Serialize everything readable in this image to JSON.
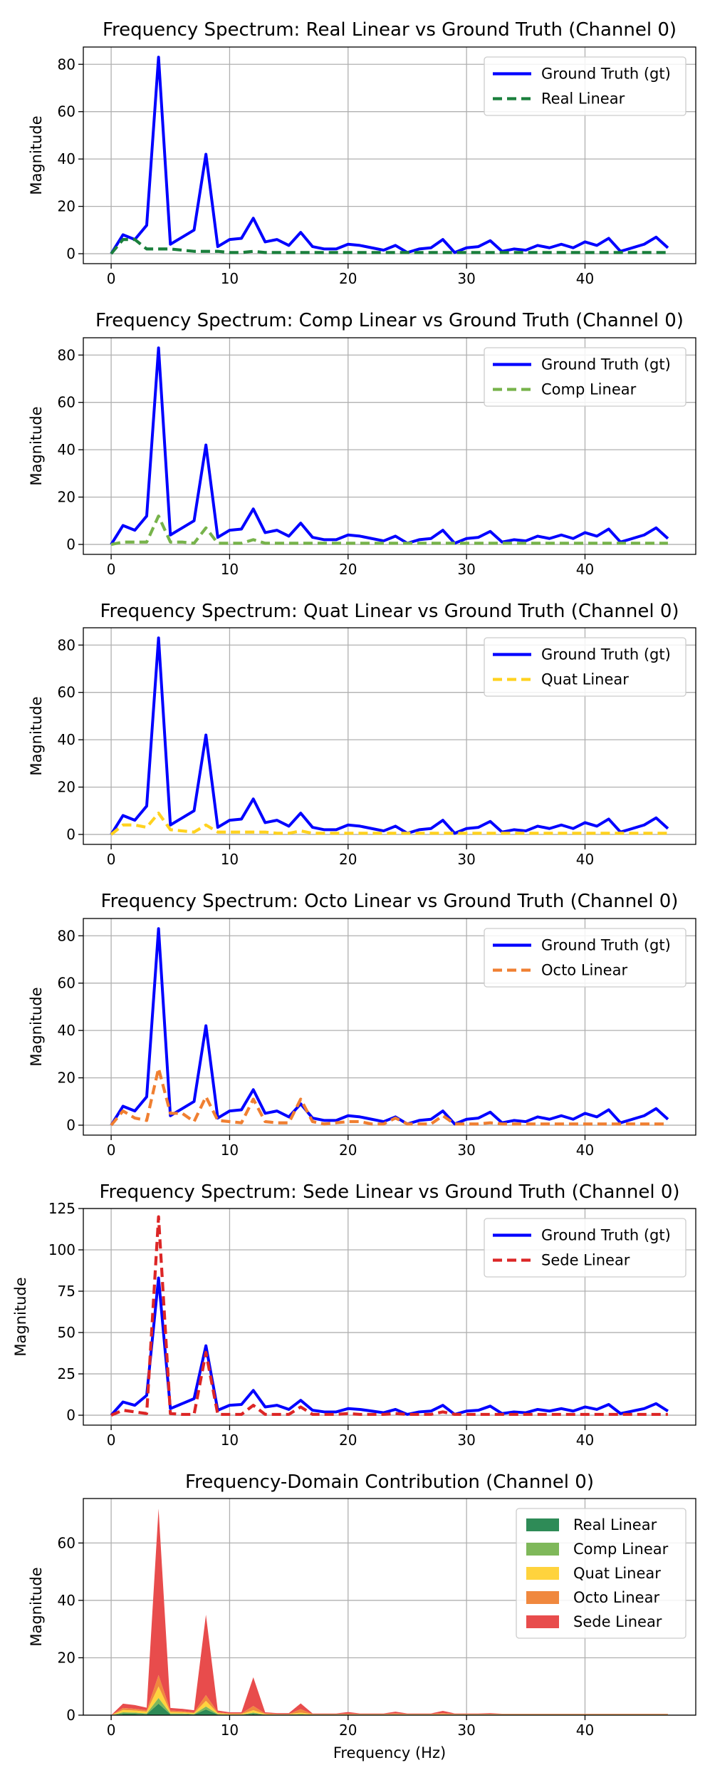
{
  "chart_data": [
    {
      "type": "line",
      "title": "Frequency Spectrum: Real Linear vs Ground Truth (Channel 0)",
      "xlabel": "",
      "ylabel": "Magnitude",
      "xlim": [
        -2.35,
        49.35
      ],
      "ylim": [
        -4.2,
        87.3
      ],
      "xticks": [
        "0",
        "10",
        "20",
        "30",
        "40"
      ],
      "yticks": [
        "0",
        "20",
        "40",
        "60",
        "80"
      ],
      "grid": true,
      "legend": "top-right",
      "series": [
        {
          "name": "Ground Truth (gt)",
          "color": "#0000ff",
          "dash": "solid",
          "values": [
            0,
            8,
            6,
            12,
            83,
            4,
            7,
            10,
            42,
            3,
            6,
            6.5,
            15,
            5,
            6,
            3.5,
            9,
            3,
            2,
            2,
            4,
            3.5,
            2.5,
            1.5,
            3.5,
            0.5,
            2,
            2.5,
            6,
            0.5,
            2.5,
            3,
            5.5,
            1,
            2,
            1.5,
            3.5,
            2.5,
            4,
            2.5,
            5,
            3.5,
            6.5,
            1,
            2.5,
            4,
            7,
            2.5
          ]
        },
        {
          "name": "Real Linear",
          "color": "#1a7f3c",
          "dash": "dashed",
          "values": [
            0,
            6,
            6,
            2,
            2,
            2,
            1.5,
            1,
            1,
            1,
            0.5,
            0.5,
            1,
            0.5,
            0.5,
            0.5,
            0.5,
            0.5,
            0.5,
            0.5,
            0.5,
            0.5,
            0.5,
            0.5,
            0.5,
            0.5,
            0.5,
            0.5,
            0.5,
            0.5,
            0.5,
            0.5,
            0.5,
            0.5,
            0.5,
            0.5,
            0.5,
            0.5,
            0.5,
            0.5,
            0.5,
            0.5,
            0.5,
            0.5,
            0.5,
            0.5,
            0.5,
            0.5
          ]
        }
      ]
    },
    {
      "type": "line",
      "title": "Frequency Spectrum: Comp Linear vs Ground Truth (Channel 0)",
      "xlabel": "",
      "ylabel": "Magnitude",
      "xlim": [
        -2.35,
        49.35
      ],
      "ylim": [
        -4.2,
        87.3
      ],
      "xticks": [
        "0",
        "10",
        "20",
        "30",
        "40"
      ],
      "yticks": [
        "0",
        "20",
        "40",
        "60",
        "80"
      ],
      "grid": true,
      "legend": "top-right",
      "series": [
        {
          "name": "Ground Truth (gt)",
          "color": "#0000ff",
          "dash": "solid",
          "values": [
            0,
            8,
            6,
            12,
            83,
            4,
            7,
            10,
            42,
            3,
            6,
            6.5,
            15,
            5,
            6,
            3.5,
            9,
            3,
            2,
            2,
            4,
            3.5,
            2.5,
            1.5,
            3.5,
            0.5,
            2,
            2.5,
            6,
            0.5,
            2.5,
            3,
            5.5,
            1,
            2,
            1.5,
            3.5,
            2.5,
            4,
            2.5,
            5,
            3.5,
            6.5,
            1,
            2.5,
            4,
            7,
            2.5
          ]
        },
        {
          "name": "Comp Linear",
          "color": "#77b34b",
          "dash": "dashed",
          "values": [
            0,
            1,
            1,
            1,
            12,
            1,
            1,
            0.5,
            7,
            0.5,
            0.5,
            0.5,
            2,
            0.5,
            0.5,
            0.5,
            0.5,
            0.5,
            0.5,
            0.5,
            0.5,
            0.5,
            0.5,
            0.5,
            0.5,
            0.5,
            0.5,
            0.5,
            0.5,
            0.5,
            0.5,
            0.5,
            0.5,
            0.5,
            0.5,
            0.5,
            0.5,
            0.5,
            0.5,
            0.5,
            0.5,
            0.5,
            0.5,
            0.5,
            0.5,
            0.5,
            0.5,
            0.5
          ]
        }
      ]
    },
    {
      "type": "line",
      "title": "Frequency Spectrum: Quat Linear vs Ground Truth (Channel 0)",
      "xlabel": "",
      "ylabel": "Magnitude",
      "xlim": [
        -2.35,
        49.35
      ],
      "ylim": [
        -4.2,
        87.3
      ],
      "xticks": [
        "0",
        "10",
        "20",
        "30",
        "40"
      ],
      "yticks": [
        "0",
        "20",
        "40",
        "60",
        "80"
      ],
      "grid": true,
      "legend": "top-right",
      "series": [
        {
          "name": "Ground Truth (gt)",
          "color": "#0000ff",
          "dash": "solid",
          "values": [
            0,
            8,
            6,
            12,
            83,
            4,
            7,
            10,
            42,
            3,
            6,
            6.5,
            15,
            5,
            6,
            3.5,
            9,
            3,
            2,
            2,
            4,
            3.5,
            2.5,
            1.5,
            3.5,
            0.5,
            2,
            2.5,
            6,
            0.5,
            2.5,
            3,
            5.5,
            1,
            2,
            1.5,
            3.5,
            2.5,
            4,
            2.5,
            5,
            3.5,
            6.5,
            1,
            2.5,
            4,
            7,
            2.5
          ]
        },
        {
          "name": "Quat Linear",
          "color": "#ffd21f",
          "dash": "dashed",
          "values": [
            0,
            4,
            4,
            3,
            9,
            2,
            1.5,
            1,
            4,
            1,
            1,
            1,
            1,
            1,
            0.5,
            0.5,
            1.5,
            0.5,
            0.5,
            0.5,
            0.5,
            0.5,
            0.5,
            0.5,
            0.5,
            0.5,
            0.5,
            0.5,
            0.5,
            0.5,
            0.5,
            0.5,
            0.5,
            0.5,
            0.5,
            0.5,
            0.5,
            0.5,
            0.5,
            0.5,
            0.5,
            0.5,
            0.5,
            0.5,
            0.5,
            0.5,
            0.5,
            0.5
          ]
        }
      ]
    },
    {
      "type": "line",
      "title": "Frequency Spectrum: Octo Linear vs Ground Truth (Channel 0)",
      "xlabel": "",
      "ylabel": "Magnitude",
      "xlim": [
        -2.35,
        49.35
      ],
      "ylim": [
        -4.2,
        87.3
      ],
      "xticks": [
        "0",
        "10",
        "20",
        "30",
        "40"
      ],
      "yticks": [
        "0",
        "20",
        "40",
        "60",
        "80"
      ],
      "grid": true,
      "legend": "top-right",
      "series": [
        {
          "name": "Ground Truth (gt)",
          "color": "#0000ff",
          "dash": "solid",
          "values": [
            0,
            8,
            6,
            12,
            83,
            4,
            7,
            10,
            42,
            3,
            6,
            6.5,
            15,
            5,
            6,
            3.5,
            9,
            3,
            2,
            2,
            4,
            3.5,
            2.5,
            1.5,
            3.5,
            0.5,
            2,
            2.5,
            6,
            0.5,
            2.5,
            3,
            5.5,
            1,
            2,
            1.5,
            3.5,
            2.5,
            4,
            2.5,
            5,
            3.5,
            6.5,
            1,
            2.5,
            4,
            7,
            2.5
          ]
        },
        {
          "name": "Octo Linear",
          "color": "#f07f31",
          "dash": "dashed",
          "values": [
            0,
            6,
            3,
            2,
            24,
            5,
            5,
            1.5,
            12,
            2,
            1.5,
            1,
            11,
            1.5,
            1,
            1,
            11,
            1.5,
            0.5,
            1,
            1.5,
            1.5,
            0.5,
            0.5,
            3,
            0.5,
            0.5,
            0.5,
            4,
            0.5,
            0.5,
            0.5,
            1,
            0.5,
            0.5,
            0.5,
            0.5,
            0.5,
            0.5,
            0.5,
            0.5,
            0.5,
            0.5,
            0.5,
            0.5,
            0.5,
            0.5,
            0.5
          ]
        }
      ]
    },
    {
      "type": "line",
      "title": "Frequency Spectrum: Sede Linear vs Ground Truth (Channel 0)",
      "xlabel": "",
      "ylabel": "Magnitude",
      "xlim": [
        -2.35,
        49.35
      ],
      "ylim": [
        -6,
        125
      ],
      "xticks": [
        "0",
        "10",
        "20",
        "30",
        "40"
      ],
      "yticks": [
        "0",
        "25",
        "50",
        "75",
        "100",
        "125"
      ],
      "grid": true,
      "legend": "top-right",
      "series": [
        {
          "name": "Ground Truth (gt)",
          "color": "#0000ff",
          "dash": "solid",
          "values": [
            0,
            8,
            6,
            12,
            83,
            4,
            7,
            10,
            42,
            3,
            6,
            6.5,
            15,
            5,
            6,
            3.5,
            9,
            3,
            2,
            2,
            4,
            3.5,
            2.5,
            1.5,
            3.5,
            0.5,
            2,
            2.5,
            6,
            0.5,
            2.5,
            3,
            5.5,
            1,
            2,
            1.5,
            3.5,
            2.5,
            4,
            2.5,
            5,
            3.5,
            6.5,
            1,
            2.5,
            4,
            7,
            2.5
          ]
        },
        {
          "name": "Sede Linear",
          "color": "#dc2626",
          "dash": "dashed",
          "values": [
            0,
            3,
            2,
            1,
            120,
            1,
            0.5,
            0.5,
            38,
            0.5,
            0.5,
            0.5,
            6,
            0.5,
            0.5,
            0.5,
            5,
            0.5,
            0.5,
            0.5,
            1,
            0.5,
            0.5,
            0.5,
            1,
            0.5,
            0.5,
            0.5,
            2,
            0.5,
            0.5,
            0.5,
            0.5,
            0.5,
            0.5,
            0.5,
            0.5,
            0.5,
            0.5,
            0.5,
            0.5,
            0.5,
            0.5,
            0.5,
            0.5,
            0.5,
            0.5,
            0.5
          ]
        }
      ]
    },
    {
      "type": "area",
      "stacked": true,
      "title": "Frequency-Domain Contribution (Channel 0)",
      "xlabel": "Frequency (Hz)",
      "ylabel": "Magnitude",
      "xlim": [
        -2.35,
        49.35
      ],
      "ylim": [
        0,
        75.5
      ],
      "xticks": [
        "0",
        "10",
        "20",
        "30",
        "40"
      ],
      "yticks": [
        "0",
        "20",
        "40",
        "60"
      ],
      "grid": true,
      "legend": "top-right",
      "series": [
        {
          "name": "Real Linear",
          "color": "#2e8b57",
          "values": [
            0,
            0.5,
            0.5,
            0.3,
            4,
            0.3,
            0.3,
            0.2,
            2,
            0.2,
            0.1,
            0.1,
            0.5,
            0.1,
            0.1,
            0.1,
            0.2,
            0.1,
            0.1,
            0.1,
            0.1,
            0.1,
            0.1,
            0.1,
            0.1,
            0.1,
            0.1,
            0.1,
            0.1,
            0.1,
            0.1,
            0.1,
            0.1,
            0.1,
            0.1,
            0.1,
            0.1,
            0.1,
            0.1,
            0.1,
            0.1,
            0.1,
            0.1,
            0.1,
            0.1,
            0.1,
            0.1,
            0.1
          ]
        },
        {
          "name": "Comp Linear",
          "color": "#7fb85a",
          "values": [
            0,
            0.5,
            0.4,
            0.3,
            2,
            0.3,
            0.3,
            0.2,
            1,
            0.2,
            0.1,
            0.1,
            0.4,
            0.1,
            0.1,
            0.1,
            0.2,
            0.1,
            0.1,
            0.1,
            0.1,
            0.1,
            0.1,
            0.1,
            0.1,
            0.1,
            0.1,
            0.1,
            0.1,
            0.1,
            0.1,
            0.1,
            0.1,
            0.1,
            0.1,
            0.1,
            0.1,
            0.1,
            0.1,
            0.1,
            0.1,
            0.1,
            0.1,
            0.1,
            0.1,
            0.1,
            0.1,
            0.1
          ]
        },
        {
          "name": "Quat Linear",
          "color": "#ffd33d",
          "values": [
            0,
            0.8,
            0.7,
            0.6,
            4,
            0.5,
            0.4,
            0.3,
            2,
            0.3,
            0.2,
            0.2,
            0.8,
            0.2,
            0.1,
            0.1,
            0.5,
            0.1,
            0.1,
            0.1,
            0.1,
            0.1,
            0.1,
            0.1,
            0.1,
            0.1,
            0.1,
            0.1,
            0.1,
            0.1,
            0.1,
            0.1,
            0.1,
            0.1,
            0.1,
            0.1,
            0.1,
            0.1,
            0.1,
            0.1,
            0.1,
            0.1,
            0.1,
            0.1,
            0.1,
            0.1,
            0.1,
            0.1
          ]
        },
        {
          "name": "Octo Linear",
          "color": "#f0883e",
          "values": [
            0,
            0.7,
            0.6,
            0.5,
            4,
            0.5,
            0.4,
            0.3,
            2,
            0.3,
            0.2,
            0.2,
            1.5,
            0.2,
            0.1,
            0.1,
            1.2,
            0.1,
            0.1,
            0.1,
            0.2,
            0.1,
            0.1,
            0.1,
            0.3,
            0.1,
            0.1,
            0.1,
            0.4,
            0.1,
            0.1,
            0.1,
            0.1,
            0.1,
            0.1,
            0.1,
            0.1,
            0.1,
            0.1,
            0.1,
            0.1,
            0.1,
            0.1,
            0.1,
            0.1,
            0.1,
            0.1,
            0.1
          ]
        },
        {
          "name": "Sede Linear",
          "color": "#e84c4c",
          "values": [
            0,
            1.5,
            1.3,
            0.9,
            58,
            0.9,
            0.8,
            0.7,
            28,
            0.6,
            0.4,
            0.4,
            10,
            0.4,
            0.3,
            0.3,
            2,
            0.2,
            0.2,
            0.2,
            0.6,
            0.2,
            0.2,
            0.2,
            0.6,
            0.2,
            0.2,
            0.2,
            0.8,
            0.2,
            0.2,
            0.2,
            0.3,
            0.1,
            0.1,
            0.1,
            0.1,
            0.1,
            0.1,
            0.1,
            0.1,
            0.1,
            0.1,
            0.1,
            0.1,
            0.1,
            0.1,
            0.1
          ]
        }
      ]
    }
  ]
}
